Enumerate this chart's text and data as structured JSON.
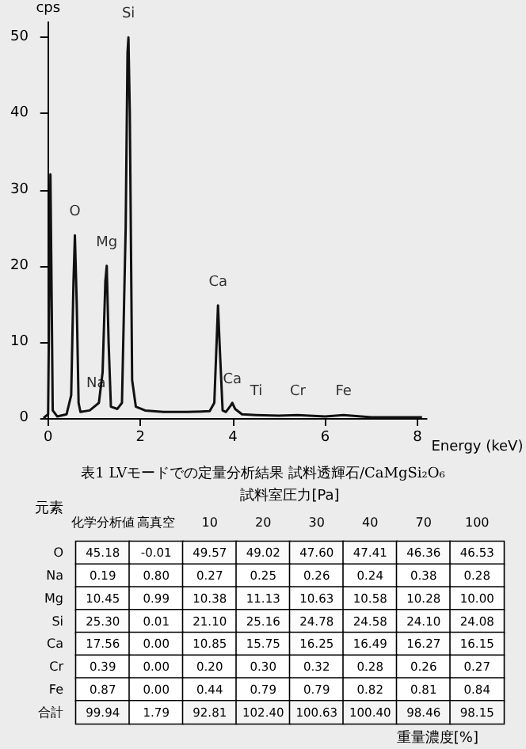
{
  "chart_data": [
    {
      "type": "line",
      "ylabel": "cps",
      "xlabel": "Energy (keV)",
      "xlim": [
        -0.15,
        8.2
      ],
      "xticks": [
        0,
        2,
        4,
        6,
        8
      ],
      "ylim": [
        0,
        52
      ],
      "yticks": [
        0,
        10,
        20,
        30,
        40,
        50
      ],
      "grid": false,
      "marker": "none",
      "line_style": "solid",
      "series": [
        {
          "color": "#111111",
          "x": [
            -0.1,
            0,
            0.03,
            0.05,
            0.07,
            0.1,
            0.2,
            0.4,
            0.5,
            0.55,
            0.58,
            0.62,
            0.66,
            0.7,
            0.9,
            1.0,
            1.1,
            1.18,
            1.24,
            1.27,
            1.31,
            1.36,
            1.5,
            1.6,
            1.68,
            1.72,
            1.74,
            1.77,
            1.82,
            1.9,
            2.1,
            2.5,
            3.0,
            3.5,
            3.6,
            3.65,
            3.68,
            3.72,
            3.78,
            3.85,
            3.95,
            3.99,
            4.05,
            4.2,
            4.5,
            5.0,
            5.4,
            6.0,
            6.4,
            7.0,
            8.1
          ],
          "values": [
            0,
            0.5,
            20,
            32,
            20,
            1,
            0.2,
            0.5,
            3,
            18,
            24,
            15,
            2,
            0.8,
            1,
            1.5,
            2,
            6,
            18,
            20,
            10,
            1.5,
            1.2,
            2,
            25,
            48,
            50,
            40,
            5,
            1.5,
            1,
            0.8,
            0.8,
            0.9,
            2,
            10,
            14.8,
            9,
            1,
            0.8,
            1.6,
            2,
            1.2,
            0.5,
            0.4,
            0.3,
            0.4,
            0.2,
            0.4,
            0.1,
            0.1
          ]
        }
      ],
      "annotations": [
        {
          "text": "O",
          "x": 0.58,
          "y": 24
        },
        {
          "text": "Na",
          "x": 1.04,
          "y": 1.5
        },
        {
          "text": "Mg",
          "x": 1.27,
          "y": 20
        },
        {
          "text": "Si",
          "x": 1.74,
          "y": 50
        },
        {
          "text": "Ca",
          "x": 3.68,
          "y": 14.8
        },
        {
          "text": "Ca",
          "x": 3.99,
          "y": 2
        },
        {
          "text": "Ti",
          "x": 4.51,
          "y": 0.4
        },
        {
          "text": "Cr",
          "x": 5.41,
          "y": 0.4
        },
        {
          "text": "Fe",
          "x": 6.4,
          "y": 0.4
        }
      ]
    },
    {
      "type": "heatmap",
      "title": "表1 LVモードでの定量分析結果 試料透輝石/CaMgSi₂O₆",
      "xlabel": "試料室圧力[Pa]",
      "ylabel": "元素",
      "annotations": [
        "重量濃度[%]"
      ],
      "categories": [
        "化学分析値",
        "高真空",
        "10",
        "20",
        "30",
        "40",
        "70",
        "100"
      ],
      "y_categories": [
        "O",
        "Na",
        "Mg",
        "Si",
        "Ca",
        "Cr",
        "Fe",
        "合計"
      ],
      "cells": [
        [
          45.18,
          -0.01,
          49.57,
          49.02,
          47.6,
          47.41,
          46.36,
          46.53
        ],
        [
          0.19,
          0.8,
          0.27,
          0.25,
          0.26,
          0.24,
          0.38,
          0.28
        ],
        [
          10.45,
          0.99,
          10.38,
          11.13,
          10.63,
          10.58,
          10.28,
          10
        ],
        [
          25.3,
          0.01,
          21.1,
          25.16,
          24.78,
          24.58,
          24.1,
          24.08
        ],
        [
          17.56,
          0,
          10.85,
          15.75,
          16.25,
          16.49,
          16.27,
          16.15
        ],
        [
          0.39,
          0,
          0.2,
          0.3,
          0.32,
          0.28,
          0.26,
          0.27
        ],
        [
          0.87,
          0,
          0.44,
          0.79,
          0.79,
          0.82,
          0.81,
          0.84
        ],
        [
          99.94,
          1.79,
          92.81,
          102.4,
          100.63,
          100.4,
          98.46,
          98.15
        ]
      ],
      "cell_labels": [
        [
          "45.18",
          "-0.01",
          "49.57",
          "49.02",
          "47.60",
          "47.41",
          "46.36",
          "46.53"
        ],
        [
          "0.19",
          "0.80",
          "0.27",
          "0.25",
          "0.26",
          "0.24",
          "0.38",
          "0.28"
        ],
        [
          "10.45",
          "0.99",
          "10.38",
          "11.13",
          "10.63",
          "10.58",
          "10.28",
          "10.00"
        ],
        [
          "25.30",
          "0.01",
          "21.10",
          "25.16",
          "24.78",
          "24.58",
          "24.10",
          "24.08"
        ],
        [
          "17.56",
          "0.00",
          "10.85",
          "15.75",
          "16.25",
          "16.49",
          "16.27",
          "16.15"
        ],
        [
          "0.39",
          "0.00",
          "0.20",
          "0.30",
          "0.32",
          "0.28",
          "0.26",
          "0.27"
        ],
        [
          "0.87",
          "0.00",
          "0.44",
          "0.79",
          "0.79",
          "0.82",
          "0.81",
          "0.84"
        ],
        [
          "99.94",
          "1.79",
          "92.81",
          "102.40",
          "100.63",
          "100.40",
          "98.46",
          "98.15"
        ]
      ]
    }
  ]
}
